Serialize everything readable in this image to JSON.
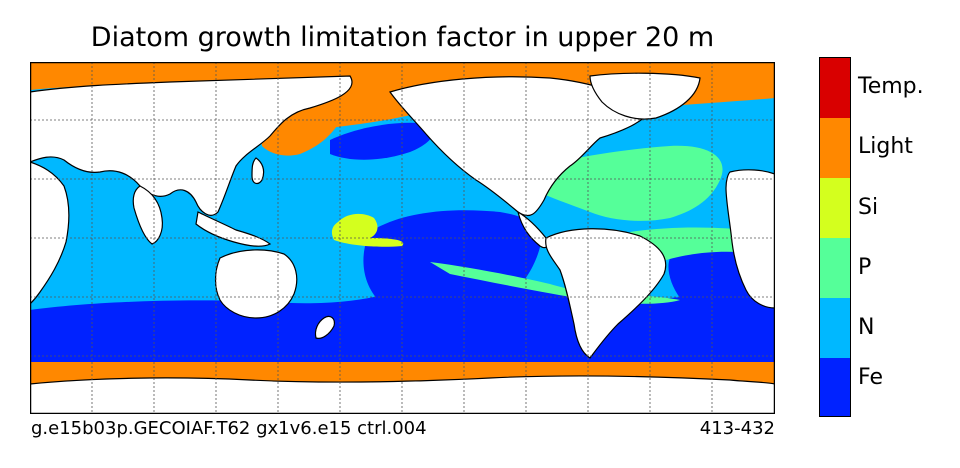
{
  "title": "Diatom growth limitation factor in upper 20 m",
  "caption_left": "g.e15b03p.GECOIAF.T62 gx1v6.e15 ctrl.004",
  "caption_right": "413-432",
  "legend": {
    "categories": [
      {
        "label": "Temp.",
        "color": "#d90000"
      },
      {
        "label": "Light",
        "color": "#ff8800"
      },
      {
        "label": "Si",
        "color": "#d4ff1e"
      },
      {
        "label": "P",
        "color": "#55ff99"
      },
      {
        "label": "N",
        "color": "#00b8ff"
      },
      {
        "label": "Fe",
        "color": "#0022ff"
      }
    ]
  },
  "colors": {
    "land": "#ffffff",
    "coast": "#000000",
    "grid": "#555555"
  }
}
